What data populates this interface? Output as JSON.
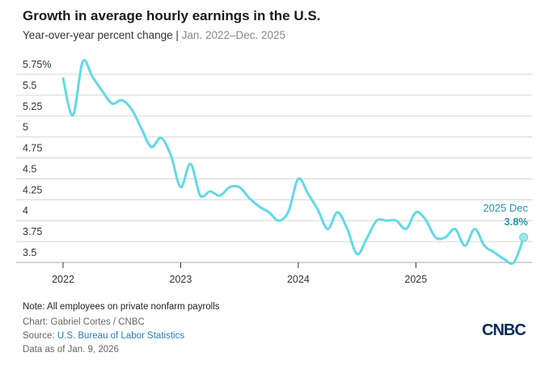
{
  "title": "Growth in average hourly earnings in the U.S.",
  "subtitle": "Year-over-year percent change",
  "subtitle_separator": "|",
  "subtitle_range": "Jan. 2022–Dec. 2025",
  "chart_data": {
    "type": "line",
    "title": "Growth in average hourly earnings in the U.S.",
    "ylim": [
      3.5,
      5.75
    ],
    "yticks": [
      3.5,
      3.75,
      4,
      4.25,
      4.5,
      4.75,
      5,
      5.25,
      5.5,
      5.75
    ],
    "ytick_labels": [
      "3.5",
      "3.75",
      "4",
      "4.25",
      "4.5",
      "4.75",
      "5",
      "5.25",
      "5.5",
      "5.75%"
    ],
    "xtick_labels": [
      "2022",
      "2023",
      "2024",
      "2025"
    ],
    "grid": true,
    "line_color": "#62d9e6",
    "x_start": "2022-01",
    "x_end": "2025-12",
    "values": [
      5.7,
      5.26,
      5.9,
      5.72,
      5.55,
      5.4,
      5.44,
      5.33,
      5.1,
      4.88,
      4.99,
      4.78,
      4.4,
      4.68,
      4.3,
      4.35,
      4.3,
      4.4,
      4.4,
      4.27,
      4.17,
      4.1,
      4.0,
      4.11,
      4.5,
      4.32,
      4.13,
      3.9,
      4.1,
      3.9,
      3.6,
      3.79,
      4.0,
      4.0,
      4.0,
      3.9,
      4.1,
      4.01,
      3.8,
      3.8,
      3.9,
      3.7,
      3.9,
      3.7,
      3.62,
      3.54,
      3.5,
      3.8
    ],
    "annotation": {
      "label": "2025 Dec",
      "value_label": "3.8%",
      "color": "#1f9aa6"
    }
  },
  "footer": {
    "note": "Note: All employees on private nonfarm payrolls",
    "chart_credit": "Chart: Gabriel Cortes / CNBC",
    "source_prefix": "Source: ",
    "source_link": "U.S. Bureau of Labor Statistics",
    "data_as_of": "Data as of Jan. 9, 2026"
  },
  "logo": "CNBC"
}
